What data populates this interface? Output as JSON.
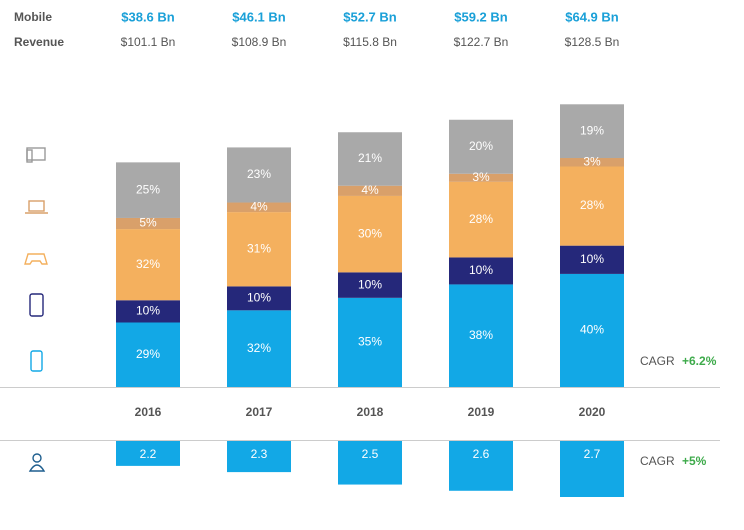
{
  "chart_data": {
    "type": "stacked-bar",
    "row_titles": [
      "Mobile",
      "Revenue"
    ],
    "categories": [
      "2016",
      "2017",
      "2018",
      "2019",
      "2020"
    ],
    "mobile_revenue": [
      "$38.6 Bn",
      "$46.1 Bn",
      "$52.7 Bn",
      "$59.2 Bn",
      "$64.9 Bn"
    ],
    "revenue": {
      "values": [
        101.1,
        108.9,
        115.8,
        122.7,
        128.5
      ],
      "value_labels": [
        "$101.1 Bn",
        "$108.9 Bn",
        "$115.8 Bn",
        "$122.7 Bn",
        "$128.5 Bn"
      ],
      "ylim": [
        0,
        140
      ]
    },
    "series": [
      {
        "color": "#12a8e6",
        "values": [
          29,
          32,
          35,
          38,
          40
        ],
        "value_labels": [
          "29%",
          "32%",
          "35%",
          "38%",
          "40%"
        ]
      },
      {
        "color": "#25287a",
        "values": [
          10,
          10,
          10,
          10,
          10
        ],
        "value_labels": [
          "10%",
          "10%",
          "10%",
          "10%",
          "10%"
        ]
      },
      {
        "color": "#f4b05e",
        "values": [
          32,
          31,
          30,
          28,
          28
        ],
        "value_labels": [
          "32%",
          "31%",
          "30%",
          "28%",
          "28%"
        ]
      },
      {
        "color": "#d9a06a",
        "values": [
          5,
          4,
          4,
          3,
          3
        ],
        "value_labels": [
          "5%",
          "4%",
          "4%",
          "3%",
          "3%"
        ]
      },
      {
        "color": "#a9a9a9",
        "values": [
          25,
          23,
          21,
          20,
          19
        ],
        "value_labels": [
          "25%",
          "23%",
          "21%",
          "20%",
          "19%"
        ]
      }
    ],
    "revenue_cagr": {
      "label": "CAGR",
      "value_label": "+6.2%"
    },
    "players": {
      "values": [
        2.2,
        2.3,
        2.5,
        2.6,
        2.7
      ],
      "color": "#12a8e6",
      "ylim": [
        1.8,
        2.7
      ]
    },
    "players_cagr": {
      "label": "CAGR",
      "value_label": "+5%"
    }
  }
}
